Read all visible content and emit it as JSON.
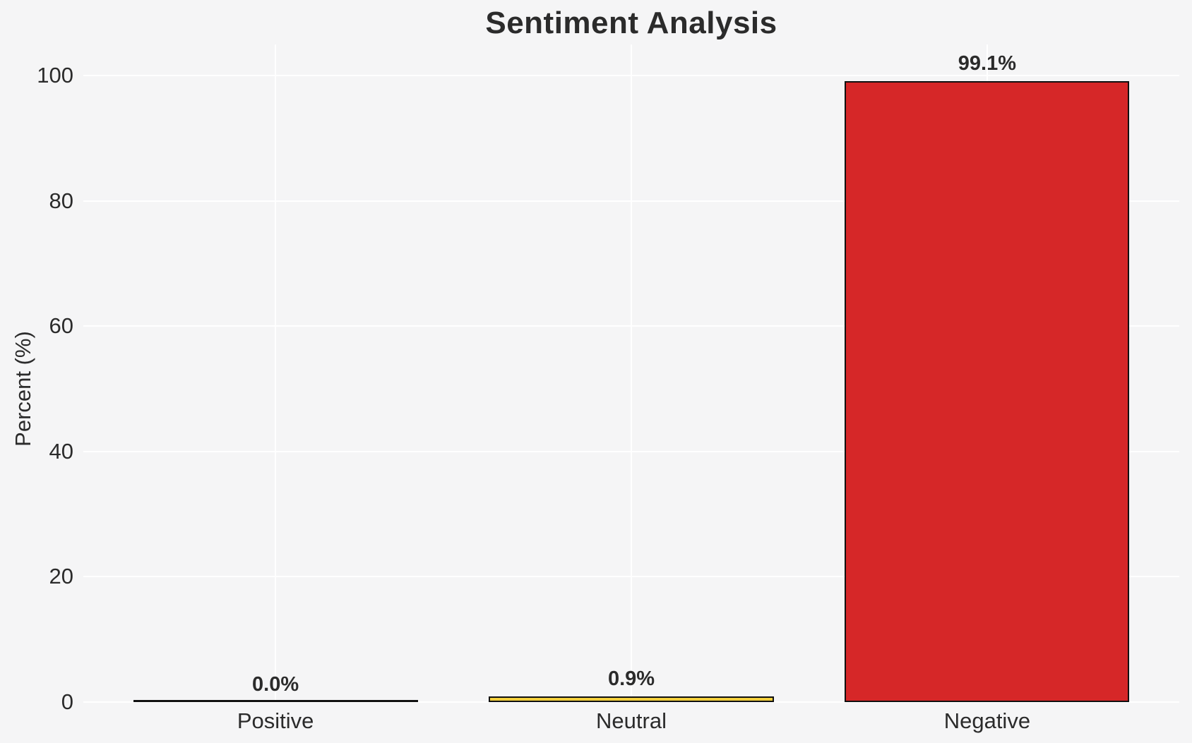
{
  "chart_data": {
    "type": "bar",
    "title": "Sentiment Analysis",
    "ylabel": "Percent (%)",
    "xlabel": "",
    "categories": [
      "Positive",
      "Neutral",
      "Negative"
    ],
    "values": [
      0.0,
      0.9,
      99.1
    ],
    "value_labels": [
      "0.0%",
      "0.9%",
      "99.1%"
    ],
    "bar_colors": [
      null,
      "#f3cf3d",
      "#d62728"
    ],
    "bar_edge_color": "#111111",
    "yticks": [
      0,
      20,
      40,
      60,
      80,
      100
    ],
    "ylim": [
      0,
      105
    ],
    "grid": true,
    "legend": false,
    "grid_color": "#ffffff",
    "background_color": "#f5f5f6",
    "text_color": "#2b2b2b"
  }
}
